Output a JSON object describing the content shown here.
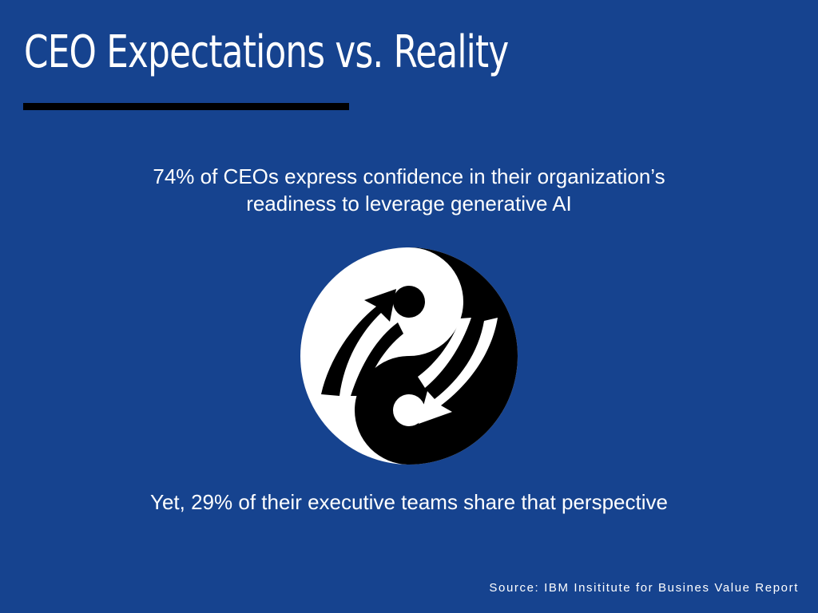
{
  "slide": {
    "title": "CEO Expectations vs. Reality",
    "top_statement_line1": "74% of CEOs express confidence in their organization’s",
    "top_statement_line2": "readiness to leverage generative AI",
    "bottom_statement": "Yet, 29% of their executive teams share that perspective",
    "source": "Source:  IBM Insititute for Busines Value Report"
  },
  "colors": {
    "background": "#16438f",
    "text": "#ffffff",
    "rule": "#000000",
    "symbol_dark": "#000000",
    "symbol_light": "#ffffff"
  },
  "graphics": {
    "center_icon": "yin-yang-person-arrows-icon"
  }
}
